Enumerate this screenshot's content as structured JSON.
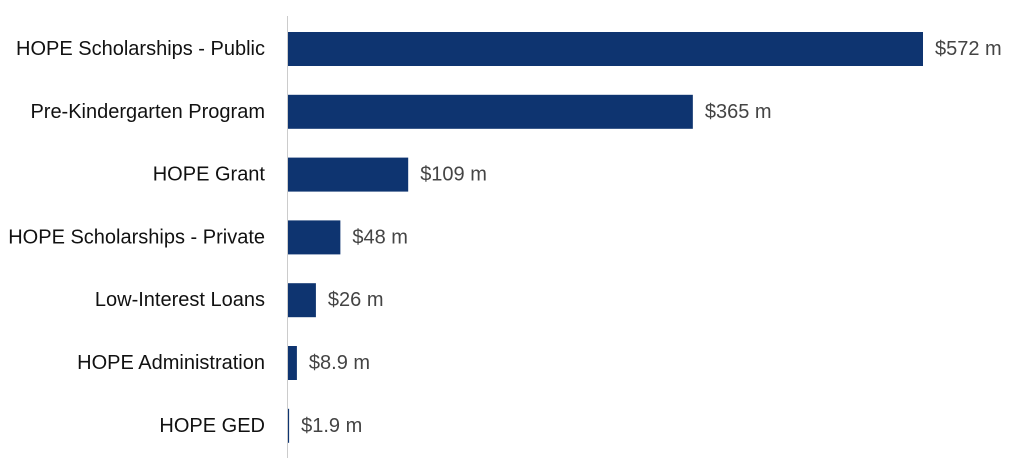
{
  "chart_data": {
    "type": "bar",
    "orientation": "horizontal",
    "categories": [
      "HOPE Scholarships - Public",
      "Pre-Kindergarten Program",
      "HOPE Grant",
      "HOPE Scholarships - Private",
      "Low-Interest Loans",
      "HOPE Administration",
      "HOPE GED"
    ],
    "values": [
      572,
      365,
      109,
      48,
      26,
      8.9,
      1.9
    ],
    "value_labels": [
      "$572 m",
      "$365 m",
      "$109 m",
      "$48 m",
      "$26 m",
      "$8.9 m",
      "$1.9 m"
    ],
    "title": "",
    "xlabel": "",
    "ylabel": "",
    "xlim": [
      0,
      572
    ],
    "grid": false,
    "legend": "none",
    "bar_color": "#0e3470",
    "axis_color": "#cccccc"
  }
}
